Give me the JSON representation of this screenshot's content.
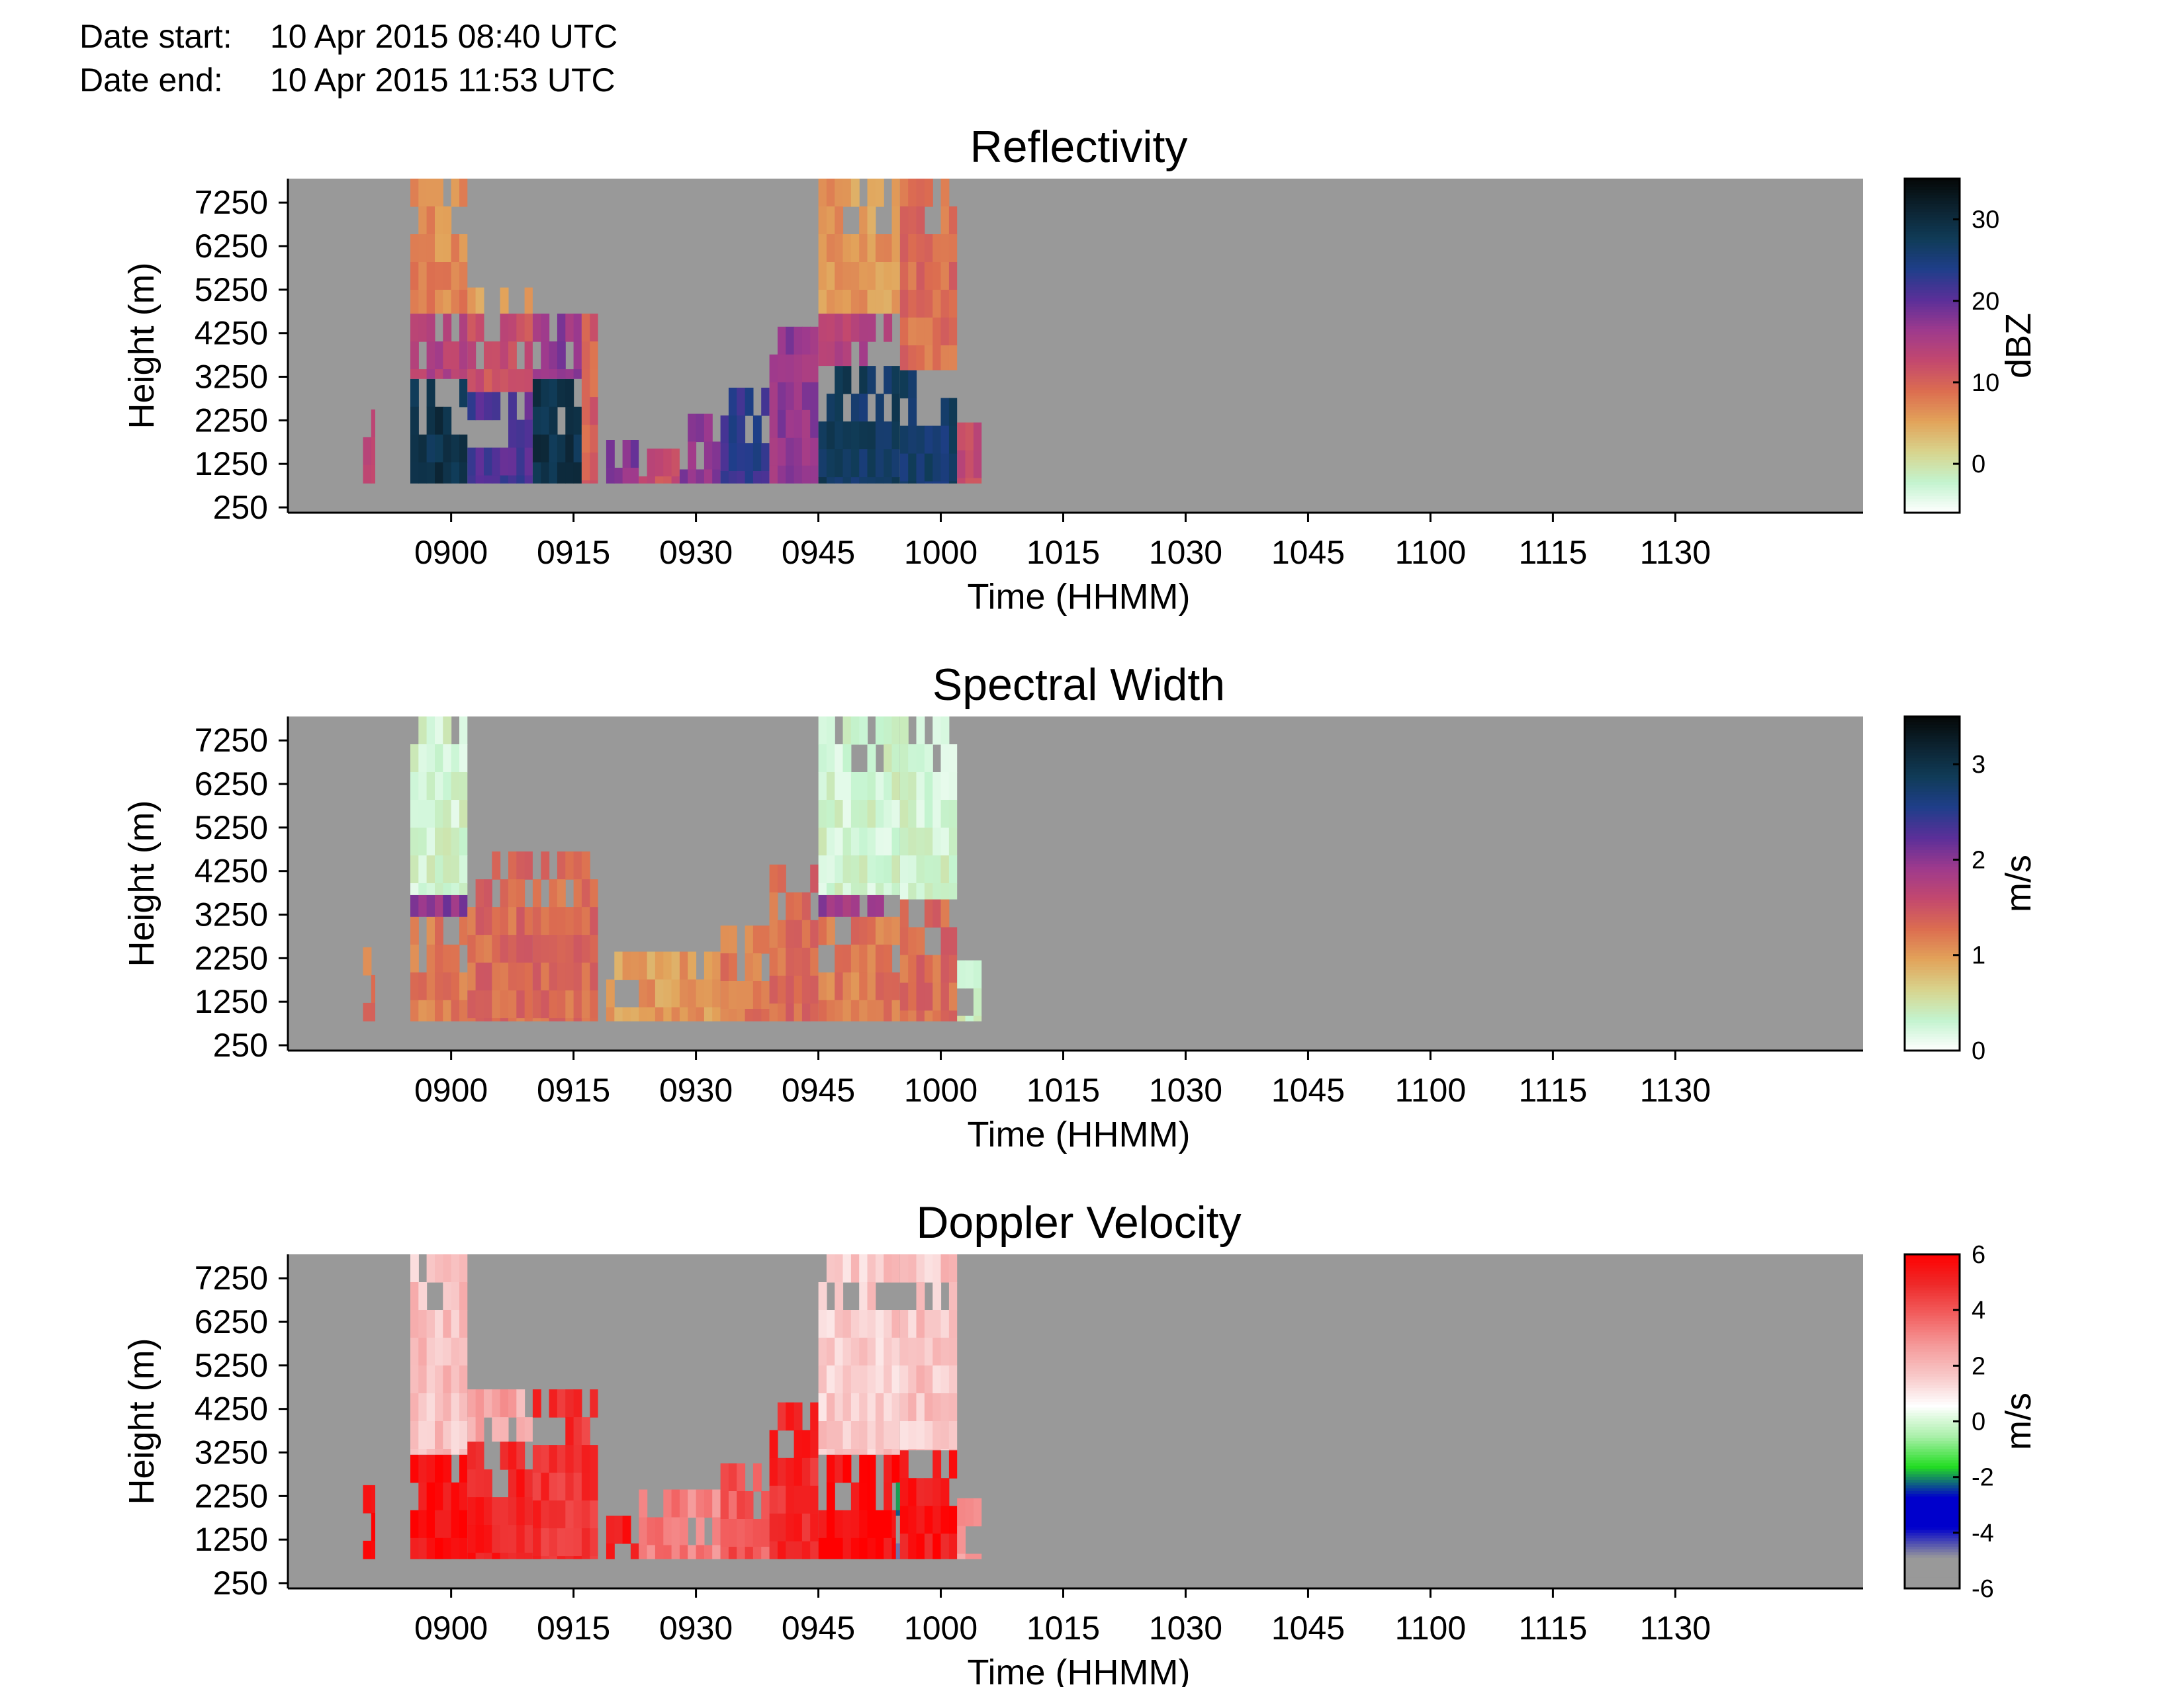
{
  "header": {
    "date_start_label": "Date start:",
    "date_start_value": "10 Apr 2015 08:40 UTC",
    "date_end_label": "Date end:",
    "date_end_value": "10 Apr 2015 11:53 UTC"
  },
  "colors": {
    "background_fill": "#999999",
    "no_data": "#999999"
  },
  "chart_data": [
    {
      "type": "heatmap",
      "title": "Reflectivity",
      "xlabel": "Time (HHMM)",
      "ylabel": "Height (m)",
      "colorbar_label": "dBZ",
      "xticks": [
        "0900",
        "0915",
        "0930",
        "0945",
        "1000",
        "1015",
        "1030",
        "1045",
        "1100",
        "1115",
        "1130"
      ],
      "yticks": [
        "250",
        "1250",
        "2250",
        "3250",
        "4250",
        "5250",
        "6250",
        "7250"
      ],
      "cbar_ticks": [
        "30",
        "20",
        "10",
        "0"
      ],
      "xlim_minutes_after_0840": [
        0,
        193
      ],
      "ylim_m": [
        250,
        7800
      ],
      "clim": [
        -6,
        35
      ],
      "colormap": [
        "#ffffff",
        "#c3f4cf",
        "#d8d48d",
        "#e2a35a",
        "#dc6d50",
        "#c3486e",
        "#9e3a8d",
        "#5b2f99",
        "#1f3e8a",
        "#103c58",
        "#0c2331",
        "#050807"
      ],
      "echoes": [
        {
          "t": [
            9.2,
            10.7
          ],
          "h": [
            800,
            2500
          ],
          "value": 14
        },
        {
          "t": [
            15.0,
            22.0
          ],
          "h": [
            800,
            3200
          ],
          "value": 29
        },
        {
          "t": [
            15.0,
            22.0
          ],
          "h": [
            3200,
            4700
          ],
          "value": 14
        },
        {
          "t": [
            15.0,
            22.0
          ],
          "h": [
            4700,
            7800
          ],
          "value": 7
        },
        {
          "t": [
            22.0,
            30.0
          ],
          "h": [
            800,
            2900
          ],
          "value": 21
        },
        {
          "t": [
            22.0,
            30.0
          ],
          "h": [
            2900,
            4700
          ],
          "value": 12
        },
        {
          "t": [
            22.0,
            30.0
          ],
          "h": [
            4700,
            5300
          ],
          "value": 6
        },
        {
          "t": [
            30.0,
            36.0
          ],
          "h": [
            800,
            3200
          ],
          "value": 29
        },
        {
          "t": [
            30.0,
            36.0
          ],
          "h": [
            3200,
            4700
          ],
          "value": 17
        },
        {
          "t": [
            36.0,
            38.0
          ],
          "h": [
            800,
            4700
          ],
          "value": 10
        },
        {
          "t": [
            39.0,
            43.0
          ],
          "h": [
            800,
            1800
          ],
          "value": 18
        },
        {
          "t": [
            43.0,
            48.0
          ],
          "h": [
            800,
            1600
          ],
          "value": 12
        },
        {
          "t": [
            48.0,
            53.0
          ],
          "h": [
            800,
            2400
          ],
          "value": 17
        },
        {
          "t": [
            53.0,
            59.0
          ],
          "h": [
            800,
            3000
          ],
          "value": 23
        },
        {
          "t": [
            59.0,
            65.0
          ],
          "h": [
            800,
            4400
          ],
          "value": 17
        },
        {
          "t": [
            65.0,
            75.0
          ],
          "h": [
            800,
            3500
          ],
          "value": 27
        },
        {
          "t": [
            65.0,
            75.0
          ],
          "h": [
            3500,
            4700
          ],
          "value": 14
        },
        {
          "t": [
            65.0,
            75.0
          ],
          "h": [
            4700,
            7800
          ],
          "value": 6
        },
        {
          "t": [
            75.0,
            82.0
          ],
          "h": [
            800,
            3400
          ],
          "value": 26
        },
        {
          "t": [
            75.0,
            82.0
          ],
          "h": [
            3400,
            7800
          ],
          "value": 9
        },
        {
          "t": [
            82.0,
            85.0
          ],
          "h": [
            800,
            2200
          ],
          "value": 12
        }
      ]
    },
    {
      "type": "heatmap",
      "title": "Spectral Width",
      "xlabel": "Time (HHMM)",
      "ylabel": "Height (m)",
      "colorbar_label": "m/s",
      "xticks": [
        "0900",
        "0915",
        "0930",
        "0945",
        "1000",
        "1015",
        "1030",
        "1045",
        "1100",
        "1115",
        "1130"
      ],
      "yticks": [
        "250",
        "1250",
        "2250",
        "3250",
        "4250",
        "5250",
        "6250",
        "7250"
      ],
      "cbar_ticks": [
        "3",
        "2",
        "1",
        "0"
      ],
      "xlim_minutes_after_0840": [
        0,
        193
      ],
      "ylim_m": [
        250,
        7800
      ],
      "clim": [
        0,
        3.5
      ],
      "colormap": [
        "#ffffff",
        "#c3f4cf",
        "#d8d48d",
        "#e2a35a",
        "#dc6d50",
        "#c3486e",
        "#9e3a8d",
        "#5b2f99",
        "#1f3e8a",
        "#103c58",
        "#0c2331",
        "#050807"
      ],
      "echoes": [
        {
          "t": [
            9.2,
            10.7
          ],
          "h": [
            800,
            2500
          ],
          "value": 1.2
        },
        {
          "t": [
            15.0,
            22.0
          ],
          "h": [
            800,
            3200
          ],
          "value": 1.2
        },
        {
          "t": [
            15.0,
            22.0
          ],
          "h": [
            3200,
            3700
          ],
          "value": 2.0
        },
        {
          "t": [
            15.0,
            22.0
          ],
          "h": [
            3700,
            7800
          ],
          "value": 0.3
        },
        {
          "t": [
            22.0,
            30.0
          ],
          "h": [
            800,
            4700
          ],
          "value": 1.3
        },
        {
          "t": [
            30.0,
            38.0
          ],
          "h": [
            800,
            4700
          ],
          "value": 1.3
        },
        {
          "t": [
            39.0,
            53.0
          ],
          "h": [
            800,
            2400
          ],
          "value": 1.0
        },
        {
          "t": [
            53.0,
            59.0
          ],
          "h": [
            800,
            3000
          ],
          "value": 1.2
        },
        {
          "t": [
            59.0,
            65.0
          ],
          "h": [
            800,
            4400
          ],
          "value": 1.3
        },
        {
          "t": [
            65.0,
            75.0
          ],
          "h": [
            800,
            3200
          ],
          "value": 1.2
        },
        {
          "t": [
            65.0,
            75.0
          ],
          "h": [
            3200,
            3700
          ],
          "value": 1.9
        },
        {
          "t": [
            65.0,
            75.0
          ],
          "h": [
            3700,
            7800
          ],
          "value": 0.3
        },
        {
          "t": [
            75.0,
            82.0
          ],
          "h": [
            800,
            3600
          ],
          "value": 1.3
        },
        {
          "t": [
            75.0,
            82.0
          ],
          "h": [
            3600,
            7800
          ],
          "value": 0.3
        },
        {
          "t": [
            82.0,
            85.0
          ],
          "h": [
            800,
            2200
          ],
          "value": 0.4
        }
      ]
    },
    {
      "type": "heatmap",
      "title": "Doppler Velocity",
      "xlabel": "Time (HHMM)",
      "ylabel": "Height (m)",
      "colorbar_label": "m/s",
      "xticks": [
        "0900",
        "0915",
        "0930",
        "0945",
        "1000",
        "1015",
        "1030",
        "1045",
        "1100",
        "1115",
        "1130"
      ],
      "yticks": [
        "250",
        "1250",
        "2250",
        "3250",
        "4250",
        "5250",
        "6250",
        "7250"
      ],
      "cbar_ticks": [
        "6",
        "4",
        "2",
        "0",
        "-2",
        "-4",
        "-6"
      ],
      "xlim_minutes_after_0840": [
        0,
        193
      ],
      "ylim_m": [
        250,
        7800
      ],
      "clim": [
        -6,
        6
      ],
      "colormap": [
        "#999999",
        "#999999",
        "#0000cc",
        "#0000cc",
        "#22dd22",
        "#aaf0aa",
        "#ffffff",
        "#f8c8c8",
        "#f59a9a",
        "#f26060",
        "#ee2a2a",
        "#ff0000"
      ],
      "echoes": [
        {
          "t": [
            9.2,
            10.7
          ],
          "h": [
            800,
            2500
          ],
          "value": 5.6
        },
        {
          "t": [
            15.0,
            22.0
          ],
          "h": [
            800,
            3200
          ],
          "value": 5.6
        },
        {
          "t": [
            15.0,
            22.0
          ],
          "h": [
            3200,
            7800
          ],
          "value": 1.8
        },
        {
          "t": [
            22.0,
            30.0
          ],
          "h": [
            800,
            3500
          ],
          "value": 5.2
        },
        {
          "t": [
            22.0,
            30.0
          ],
          "h": [
            3500,
            4700
          ],
          "value": 2.4
        },
        {
          "t": [
            30.0,
            38.0
          ],
          "h": [
            800,
            4700
          ],
          "value": 4.8
        },
        {
          "t": [
            39.0,
            43.0
          ],
          "h": [
            800,
            1800
          ],
          "value": 5.5
        },
        {
          "t": [
            43.0,
            53.0
          ],
          "h": [
            800,
            2400
          ],
          "value": 3.2
        },
        {
          "t": [
            53.0,
            59.0
          ],
          "h": [
            800,
            3000
          ],
          "value": 4.0
        },
        {
          "t": [
            59.0,
            65.0
          ],
          "h": [
            800,
            4400
          ],
          "value": 5.0
        },
        {
          "t": [
            65.0,
            75.0
          ],
          "h": [
            800,
            3200
          ],
          "value": 5.7
        },
        {
          "t": [
            65.0,
            75.0
          ],
          "h": [
            3200,
            7800
          ],
          "value": 1.6
        },
        {
          "t": [
            74.5,
            75.0
          ],
          "h": [
            1800,
            3200
          ],
          "value": -2.0
        },
        {
          "t": [
            74.5,
            75.0
          ],
          "h": [
            800,
            1800
          ],
          "value": -4.5
        },
        {
          "t": [
            75.0,
            82.0
          ],
          "h": [
            800,
            3300
          ],
          "value": 5.4
        },
        {
          "t": [
            75.0,
            82.0
          ],
          "h": [
            3300,
            7800
          ],
          "value": 1.7
        },
        {
          "t": [
            82.0,
            85.0
          ],
          "h": [
            800,
            2200
          ],
          "value": 2.5
        }
      ]
    }
  ]
}
